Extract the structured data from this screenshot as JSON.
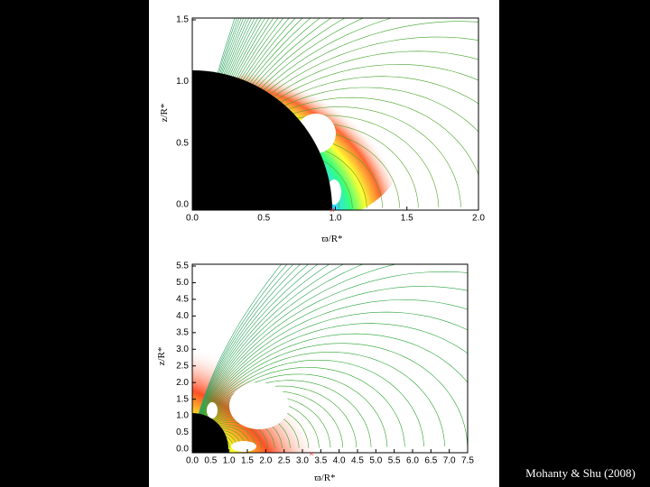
{
  "top_plot": {
    "y_label": "z/R*",
    "x_label": "ϖ/R*",
    "x_ticks": [
      "0.0",
      "0.5",
      "1.0",
      "1.5",
      "2.0"
    ],
    "y_ticks": [
      "0.0",
      "0.5",
      "1.0",
      "1.5"
    ]
  },
  "bottom_plot": {
    "y_label": "z/R*",
    "x_label": "ϖ/R*",
    "x_ticks": [
      "0.0",
      "0.5",
      "1.0",
      "1.5",
      "2.0",
      "2.5",
      "3.0",
      "3.5",
      "4.0",
      "4.5",
      "5.0",
      "5.5",
      "6.0",
      "6.5",
      "7.0",
      "7.5"
    ],
    "y_ticks": [
      "0.0",
      "0.5",
      "1.0",
      "1.5",
      "2.0",
      "2.5",
      "3.0",
      "3.5",
      "4.0",
      "4.5",
      "5.0",
      "5.5"
    ]
  },
  "credit": "Mohanty & Shu (2008)"
}
